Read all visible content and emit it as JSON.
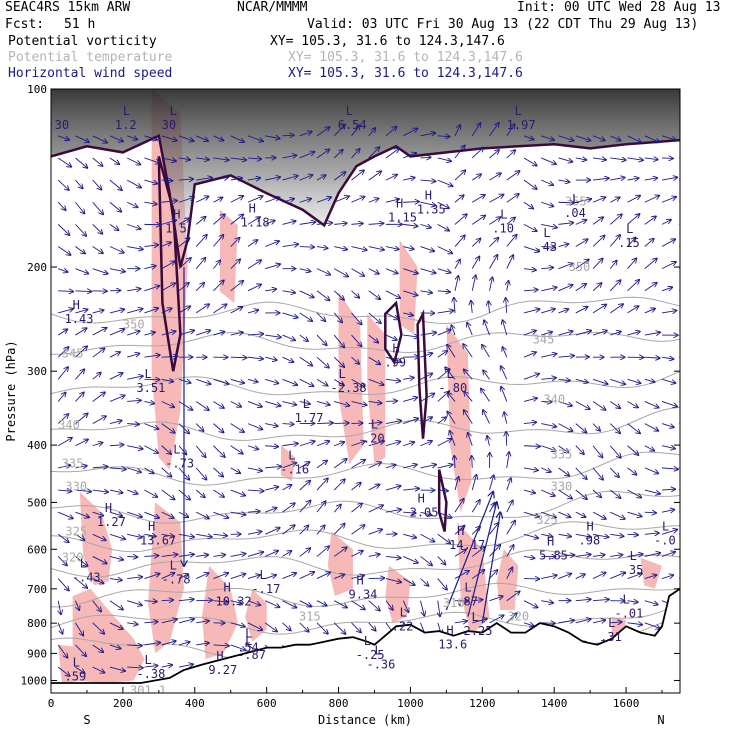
{
  "header": {
    "model": "SEAC4RS 15km ARW",
    "org": "NCAR/MMMM",
    "init": "Init: 00 UTC Wed 28 Aug 13",
    "fcst_label": "Fcst:",
    "fcst_value": "51 h",
    "valid": "Valid: 03 UTC Fri 30 Aug 13 (22 CDT Thu 29 Aug 13)",
    "fields": [
      {
        "name": "Potential vorticity",
        "xy": "XY= 105.3, 31.6 to 124.3,147.6",
        "color": "#000000"
      },
      {
        "name": "Potential temperature",
        "xy": "XY= 105.3, 31.6 to 124.3,147.6",
        "color": "#b4b4b4"
      },
      {
        "name": "Horizontal wind speed",
        "xy": "XY= 105.3, 31.6 to 124.3,147.6",
        "color": "#1a1a8c"
      }
    ]
  },
  "chart_data": {
    "type": "cross-section",
    "xlabel": "Distance (km)",
    "ylabel": "Pressure (hPa)",
    "xlim": [
      0,
      1750
    ],
    "ylim": [
      1050,
      100
    ],
    "y_scale": "log",
    "x_ticks": [
      "0",
      "200",
      "400",
      "600",
      "800",
      "1000",
      "1200",
      "1400",
      "1600"
    ],
    "y_ticks": [
      "100",
      "200",
      "300",
      "400",
      "500",
      "600",
      "700",
      "800",
      "900",
      "1000"
    ],
    "endpoints": {
      "left": "S",
      "right": "N"
    },
    "colors": {
      "pv_shade": "#f7b8b8",
      "theta": "#a8a8a8",
      "wind": "#1a1a8c",
      "label": "#2a1a6e",
      "terrain": "#000000"
    },
    "theta_labels": [
      {
        "text": "350",
        "x": 200,
        "p": 250
      },
      {
        "text": "345",
        "x": 30,
        "p": 280
      },
      {
        "text": "340",
        "x": 20,
        "p": 370
      },
      {
        "text": "335",
        "x": 30,
        "p": 430
      },
      {
        "text": "330",
        "x": 40,
        "p": 470
      },
      {
        "text": "325",
        "x": 40,
        "p": 560
      },
      {
        "text": "320",
        "x": 30,
        "p": 620
      },
      {
        "text": "355",
        "x": 1430,
        "p": 155
      },
      {
        "text": "350",
        "x": 1440,
        "p": 200
      },
      {
        "text": "345",
        "x": 1340,
        "p": 265
      },
      {
        "text": "340",
        "x": 1370,
        "p": 335
      },
      {
        "text": "335",
        "x": 1390,
        "p": 415
      },
      {
        "text": "330",
        "x": 1390,
        "p": 470
      },
      {
        "text": "325",
        "x": 1350,
        "p": 535
      },
      {
        "text": "315",
        "x": 690,
        "p": 780
      },
      {
        "text": "310",
        "x": 1090,
        "p": 740
      },
      {
        "text": "320",
        "x": 1270,
        "p": 780
      }
    ],
    "extrema": [
      {
        "kind": "L",
        "value": "1.2",
        "x": 200,
        "p": 115
      },
      {
        "kind": "L",
        "value": "30",
        "x": 330,
        "p": 115
      },
      {
        "kind": "L",
        "value": "6.54",
        "x": 820,
        "p": 115
      },
      {
        "kind": "L",
        "value": "1.97",
        "x": 1290,
        "p": 115
      },
      {
        "kind": "H",
        "value": "1.5",
        "x": 340,
        "p": 172
      },
      {
        "kind": "H",
        "value": "1.18",
        "x": 550,
        "p": 168
      },
      {
        "kind": "H",
        "value": "1.15",
        "x": 960,
        "p": 165
      },
      {
        "kind": "H",
        "value": "1.35",
        "x": 1040,
        "p": 160
      },
      {
        "kind": "L",
        "value": ".10",
        "x": 1250,
        "p": 172
      },
      {
        "kind": "L",
        "value": ".43",
        "x": 1370,
        "p": 185
      },
      {
        "kind": "L",
        "value": ".04",
        "x": 1450,
        "p": 162
      },
      {
        "kind": "L",
        "value": ".15",
        "x": 1600,
        "p": 182
      },
      {
        "kind": "H",
        "value": "1.43",
        "x": 60,
        "p": 245
      },
      {
        "kind": "L",
        "value": "3.51",
        "x": 260,
        "p": 320
      },
      {
        "kind": "L",
        "value": "-2.38",
        "x": 800,
        "p": 320
      },
      {
        "kind": "H",
        "value": ".99",
        "x": 950,
        "p": 290
      },
      {
        "kind": "L",
        "value": "-.80",
        "x": 1100,
        "p": 320
      },
      {
        "kind": "L",
        "value": "1.77",
        "x": 700,
        "p": 360
      },
      {
        "kind": "L",
        "value": ".20",
        "x": 890,
        "p": 390
      },
      {
        "kind": "L",
        "value": "-.16",
        "x": 660,
        "p": 440
      },
      {
        "kind": "L",
        "value": "-.73",
        "x": 340,
        "p": 430
      },
      {
        "kind": "H",
        "value": "2.05",
        "x": 1020,
        "p": 520
      },
      {
        "kind": "H",
        "value": "1.27",
        "x": 150,
        "p": 540
      },
      {
        "kind": "H",
        "value": "13.67",
        "x": 270,
        "p": 580
      },
      {
        "kind": "H",
        "value": "14.17",
        "x": 1130,
        "p": 590
      },
      {
        "kind": "H",
        "value": ".98",
        "x": 1490,
        "p": 580
      },
      {
        "kind": "L",
        "value": "-.0",
        "x": 1700,
        "p": 580
      },
      {
        "kind": "H",
        "value": "5.85",
        "x": 1380,
        "p": 615
      },
      {
        "kind": "L",
        "value": ".35",
        "x": 1610,
        "p": 650
      },
      {
        "kind": "L",
        "value": "-.43",
        "x": 80,
        "p": 670
      },
      {
        "kind": "L",
        "value": "-.78",
        "x": 330,
        "p": 675
      },
      {
        "kind": "L",
        "value": "-.17",
        "x": 580,
        "p": 700
      },
      {
        "kind": "H",
        "value": "9.34",
        "x": 850,
        "p": 715
      },
      {
        "kind": "H",
        "value": "10.32",
        "x": 480,
        "p": 735
      },
      {
        "kind": "L",
        "value": ".87",
        "x": 1150,
        "p": 735
      },
      {
        "kind": "L",
        "value": "-.01",
        "x": 1590,
        "p": 770
      },
      {
        "kind": "L",
        "value": ".22",
        "x": 970,
        "p": 810
      },
      {
        "kind": "L",
        "value": "2.25",
        "x": 1170,
        "p": 825
      },
      {
        "kind": "L",
        "value": ".31",
        "x": 1550,
        "p": 845
      },
      {
        "kind": "H",
        "value": "13.6",
        "x": 1100,
        "p": 870
      },
      {
        "kind": "L",
        "value": ".54",
        "x": 540,
        "p": 880
      },
      {
        "kind": "L",
        "value": "-.87",
        "x": 540,
        "p": 905
      },
      {
        "kind": "L",
        "value": "-.25",
        "x": 870,
        "p": 905
      },
      {
        "kind": "H",
        "value": "9.27",
        "x": 460,
        "p": 960
      },
      {
        "kind": "L",
        "value": "-.36",
        "x": 900,
        "p": 940
      },
      {
        "kind": "L",
        "value": "-.38",
        "x": 260,
        "p": 975
      },
      {
        "kind": "L",
        "value": ".59",
        "x": 60,
        "p": 985
      }
    ],
    "corner_labels": [
      {
        "text": "30",
        "x": 10,
        "p": 115
      },
      {
        "text": "301.1",
        "x": 220,
        "p": 1040
      }
    ]
  }
}
